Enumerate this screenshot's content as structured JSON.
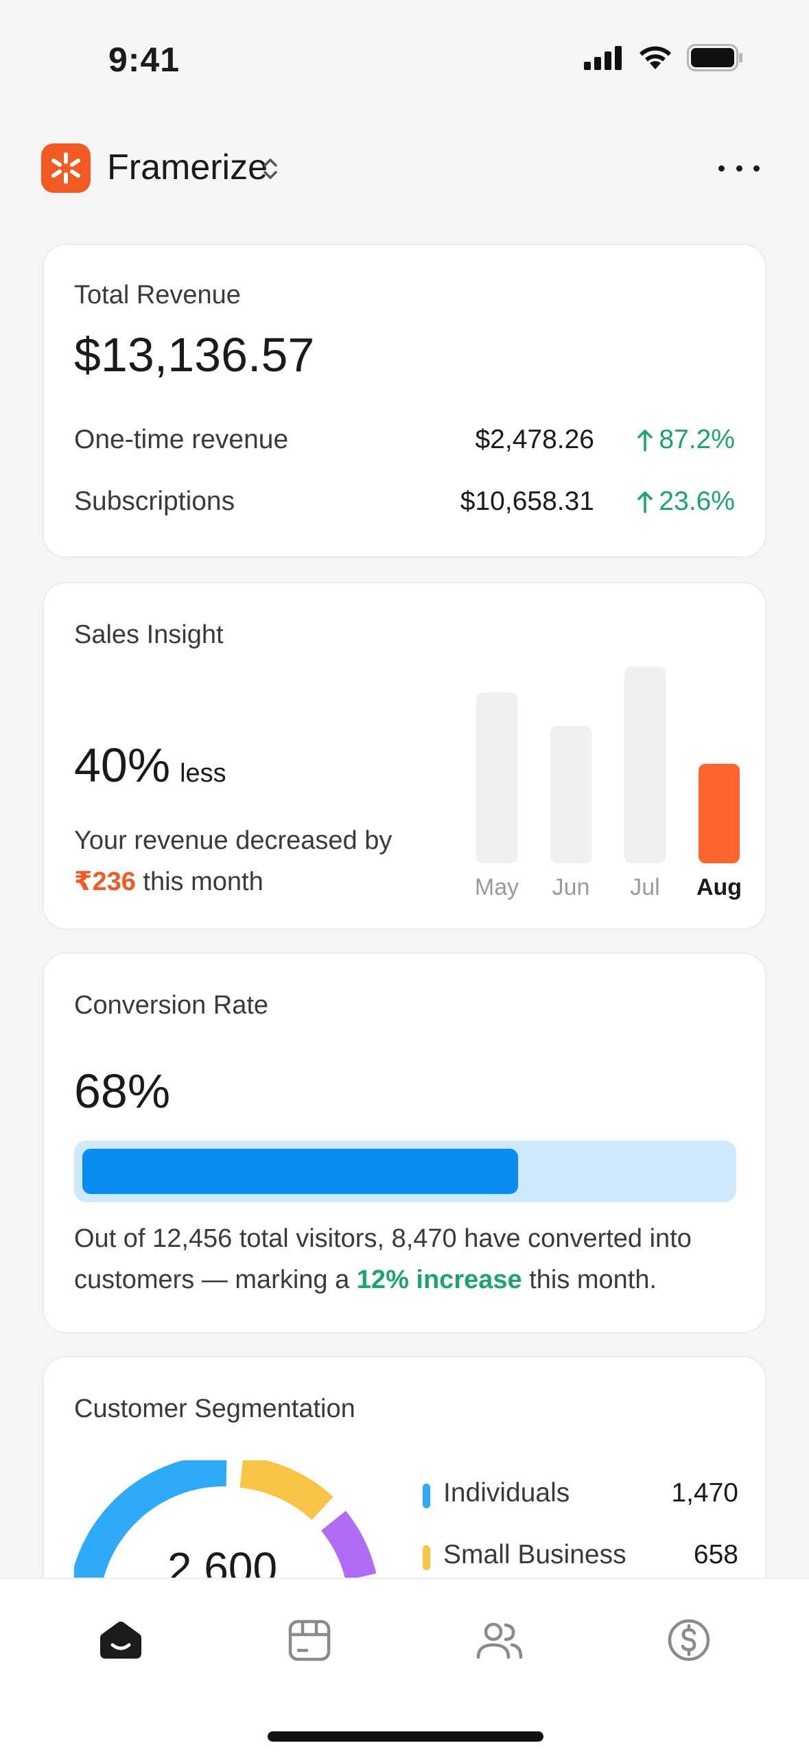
{
  "status_bar": {
    "time": "9:41"
  },
  "header": {
    "app_name": "Framerize"
  },
  "revenue": {
    "title": "Total Revenue",
    "total": "$13,136.57",
    "rows": [
      {
        "label": "One-time revenue",
        "amount": "$2,478.26",
        "change": "87.2%"
      },
      {
        "label": "Subscriptions",
        "amount": "$10,658.31",
        "change": "23.6%"
      }
    ],
    "positive_color": "#1ea46a"
  },
  "sales": {
    "title": "Sales Insight",
    "percent": "40%",
    "percent_suffix": "less",
    "desc_line1": "Your revenue decreased by",
    "desc_amount": "₹236",
    "desc_line2": " this month",
    "accent_color": "#f25a24",
    "chart_data": {
      "type": "bar",
      "categories": [
        "May",
        "Jun",
        "Jul",
        "Aug"
      ],
      "values": [
        86,
        69,
        99,
        50
      ],
      "highlight": "Aug",
      "ylim": [
        0,
        100
      ],
      "grid": false,
      "title": "",
      "xlabel": "",
      "ylabel": ""
    }
  },
  "conversion": {
    "title": "Conversion Rate",
    "value": "68%",
    "progress": 0.68,
    "desc_prefix": "Out of 12,456 total visitors, 8,470 have converted into customers — marking a ",
    "desc_highlight": "12% increase",
    "desc_suffix": " this month."
  },
  "segmentation": {
    "title": "Customer Segmentation",
    "total": "2,600",
    "items": [
      {
        "name": "Individuals",
        "value": "1,470",
        "color": "#2eaaf8"
      },
      {
        "name": "Small Business",
        "value": "658",
        "color": "#f9c346"
      }
    ],
    "third_color": "#b06cf5"
  },
  "tabs": [
    {
      "icon": "home-icon",
      "active": true
    },
    {
      "icon": "calendar-icon",
      "active": false
    },
    {
      "icon": "users-icon",
      "active": false
    },
    {
      "icon": "dollar-icon",
      "active": false
    }
  ]
}
